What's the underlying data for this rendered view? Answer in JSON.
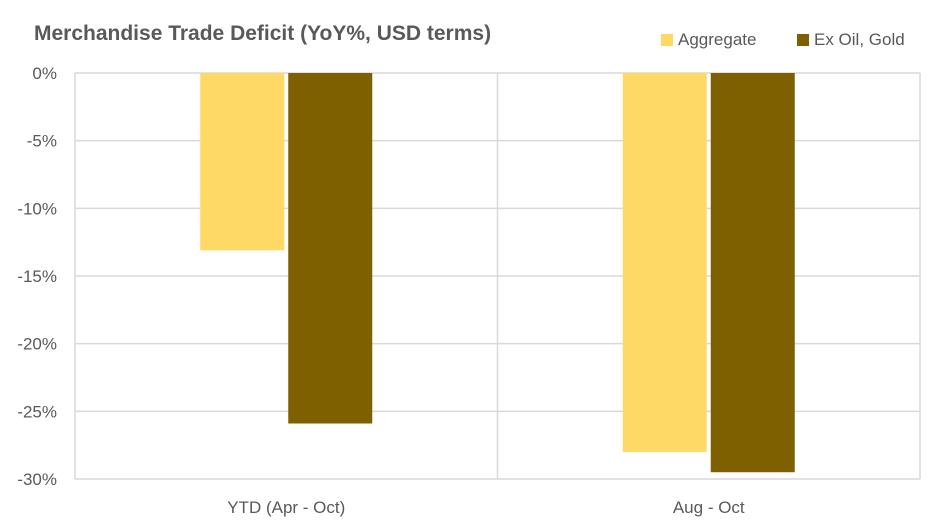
{
  "chart_data": {
    "type": "bar",
    "title": "Merchandise Trade Deficit (YoY%, USD terms)",
    "categories": [
      "YTD (Apr - Oct)",
      "Aug - Oct"
    ],
    "series": [
      {
        "name": "Aggregate",
        "values": [
          -13.1,
          -28.0
        ],
        "color": "#FFD966"
      },
      {
        "name": "Ex Oil, Gold",
        "values": [
          -25.9,
          -29.5
        ],
        "color": "#7F6000"
      }
    ],
    "ylim": [
      -30,
      0
    ],
    "yticks": [
      0,
      -5,
      -10,
      -15,
      -20,
      -25,
      -30
    ],
    "ytick_labels": [
      "0%",
      "-5%",
      "-10%",
      "-15%",
      "-20%",
      "-25%",
      "-30%"
    ],
    "xlabel": "",
    "ylabel": "",
    "grid": true,
    "legend": "top-right"
  }
}
